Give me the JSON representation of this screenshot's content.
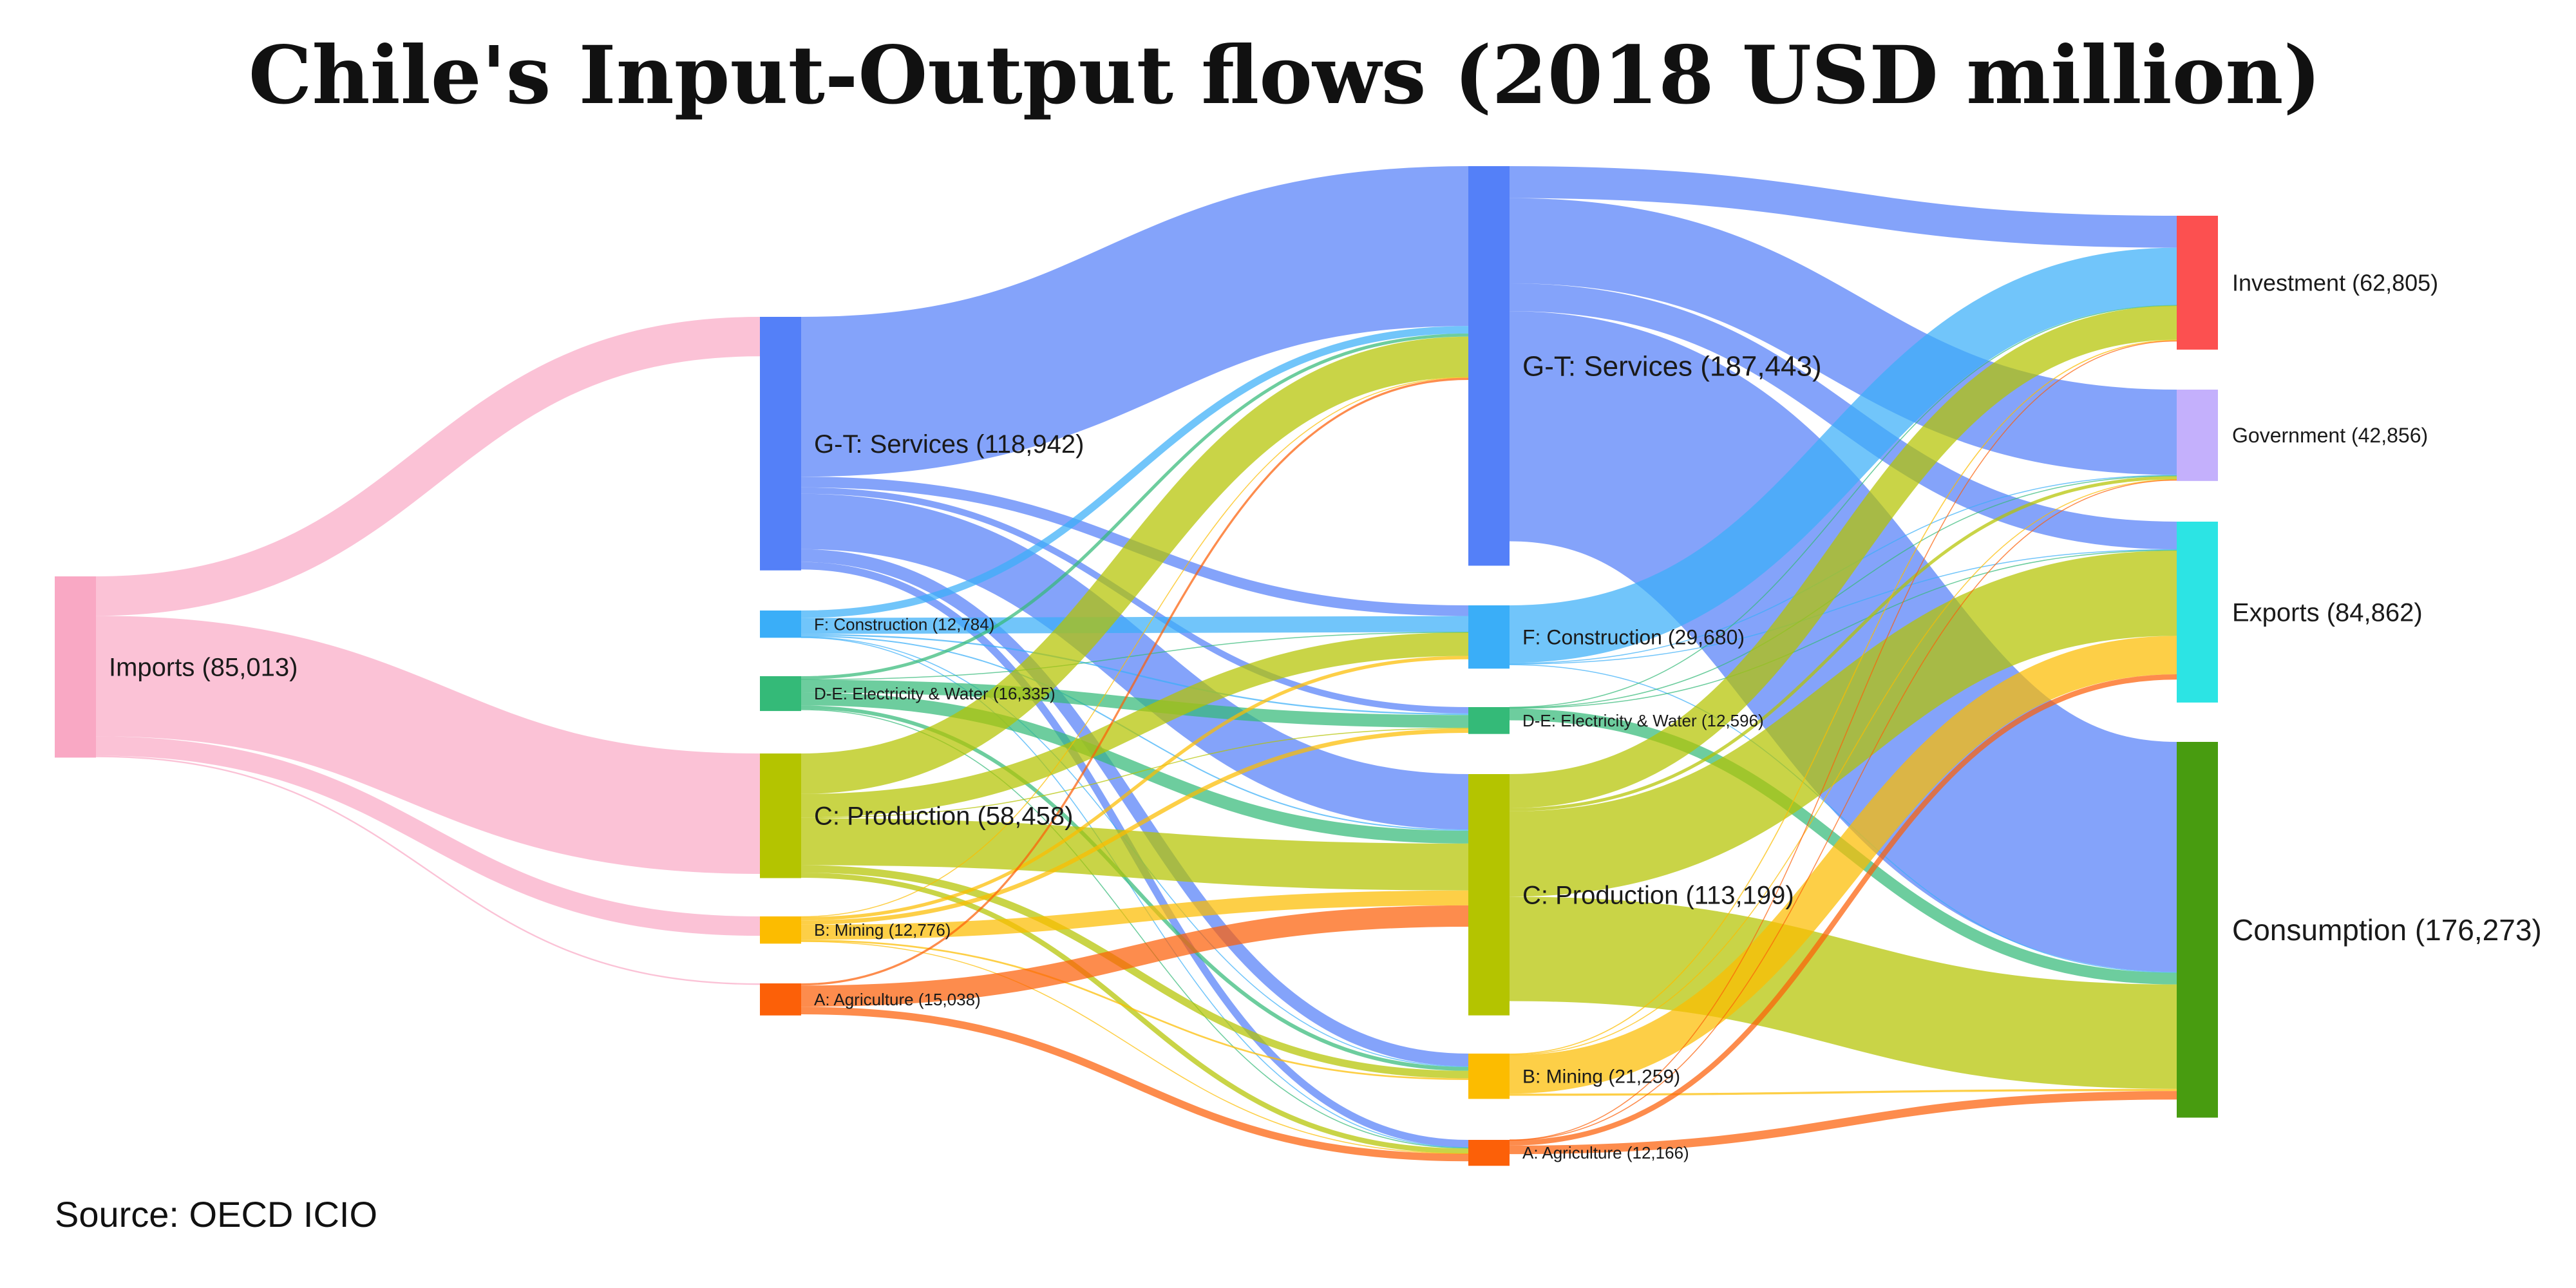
{
  "page": {
    "title": "Chile's Input-Output flows (2018 USD million)",
    "source": "Source: OECD ICIO"
  },
  "chart_data": {
    "type": "sankey",
    "nodes": [
      {
        "id": "imports",
        "label": "Imports (85,013)",
        "value": 85013,
        "color": "#F9A8C4"
      },
      {
        "id": "s_gt",
        "label": "G-T: Services (118,942)",
        "value": 118942,
        "color": "#5480F8"
      },
      {
        "id": "s_f",
        "label": "F: Construction (12,784)",
        "value": 12784,
        "color": "#3AAEF8"
      },
      {
        "id": "s_de",
        "label": "D-E: Electricity & Water (16,335)",
        "value": 16335,
        "color": "#34BA78"
      },
      {
        "id": "s_c",
        "label": "C: Production (58,458)",
        "value": 58458,
        "color": "#B4C400"
      },
      {
        "id": "s_b",
        "label": "B: Mining (12,776)",
        "value": 12776,
        "color": "#FCBC00"
      },
      {
        "id": "s_a",
        "label": "A: Agriculture (15,038)",
        "value": 15038,
        "color": "#FC6008"
      },
      {
        "id": "t_gt",
        "label": "G-T: Services (187,443)",
        "value": 187443,
        "color": "#5480F8"
      },
      {
        "id": "t_f",
        "label": "F: Construction (29,680)",
        "value": 29680,
        "color": "#3AAEF8"
      },
      {
        "id": "t_de",
        "label": "D-E: Electricity & Water (12,596)",
        "value": 12596,
        "color": "#34BA78"
      },
      {
        "id": "t_c",
        "label": "C: Production (113,199)",
        "value": 113199,
        "color": "#B4C400"
      },
      {
        "id": "t_b",
        "label": "B: Mining (21,259)",
        "value": 21259,
        "color": "#FCBC00"
      },
      {
        "id": "t_a",
        "label": "A: Agriculture (12,166)",
        "value": 12166,
        "color": "#FC6008"
      },
      {
        "id": "inv",
        "label": "Investment (62,805)",
        "value": 62805,
        "color": "#FC5050"
      },
      {
        "id": "gov",
        "label": "Government (42,856)",
        "value": 42856,
        "color": "#C4B0FC"
      },
      {
        "id": "exp",
        "label": "Exports (84,862)",
        "value": 84862,
        "color": "#2CE4E4"
      },
      {
        "id": "con",
        "label": "Consumption (176,273)",
        "value": 176273,
        "color": "#489C10"
      }
    ],
    "links": [
      {
        "source": "imports",
        "target": "s_gt",
        "value": 18500
      },
      {
        "source": "imports",
        "target": "s_c",
        "value": 56500
      },
      {
        "source": "imports",
        "target": "s_b",
        "value": 9100
      },
      {
        "source": "imports",
        "target": "s_a",
        "value": 700
      },
      {
        "source": "s_gt",
        "target": "t_gt",
        "value": 75000
      },
      {
        "source": "s_gt",
        "target": "t_f",
        "value": 5000
      },
      {
        "source": "s_gt",
        "target": "t_de",
        "value": 3000
      },
      {
        "source": "s_gt",
        "target": "t_c",
        "value": 26000
      },
      {
        "source": "s_gt",
        "target": "t_b",
        "value": 6000
      },
      {
        "source": "s_gt",
        "target": "t_a",
        "value": 3500
      },
      {
        "source": "s_f",
        "target": "t_gt",
        "value": 3500
      },
      {
        "source": "s_f",
        "target": "t_f",
        "value": 7500
      },
      {
        "source": "s_f",
        "target": "t_de",
        "value": 700
      },
      {
        "source": "s_f",
        "target": "t_c",
        "value": 600
      },
      {
        "source": "s_f",
        "target": "t_b",
        "value": 300
      },
      {
        "source": "s_f",
        "target": "t_a",
        "value": 150
      },
      {
        "source": "s_de",
        "target": "t_gt",
        "value": 1500
      },
      {
        "source": "s_de",
        "target": "t_f",
        "value": 200
      },
      {
        "source": "s_de",
        "target": "t_de",
        "value": 6000
      },
      {
        "source": "s_de",
        "target": "t_c",
        "value": 6000
      },
      {
        "source": "s_de",
        "target": "t_b",
        "value": 1800
      },
      {
        "source": "s_de",
        "target": "t_a",
        "value": 400
      },
      {
        "source": "s_c",
        "target": "t_gt",
        "value": 19000
      },
      {
        "source": "s_c",
        "target": "t_f",
        "value": 11000
      },
      {
        "source": "s_c",
        "target": "t_de",
        "value": 400
      },
      {
        "source": "s_c",
        "target": "t_c",
        "value": 22000
      },
      {
        "source": "s_c",
        "target": "t_b",
        "value": 3500
      },
      {
        "source": "s_c",
        "target": "t_a",
        "value": 2400
      },
      {
        "source": "s_b",
        "target": "t_gt",
        "value": 300
      },
      {
        "source": "s_b",
        "target": "t_f",
        "value": 1600
      },
      {
        "source": "s_b",
        "target": "t_de",
        "value": 2000
      },
      {
        "source": "s_b",
        "target": "t_c",
        "value": 7000
      },
      {
        "source": "s_b",
        "target": "t_b",
        "value": 800
      },
      {
        "source": "s_b",
        "target": "t_a",
        "value": 100
      },
      {
        "source": "s_a",
        "target": "t_gt",
        "value": 1000
      },
      {
        "source": "s_a",
        "target": "t_c",
        "value": 10000
      },
      {
        "source": "s_a",
        "target": "t_a",
        "value": 3500
      },
      {
        "source": "t_gt",
        "target": "inv",
        "value": 15000
      },
      {
        "source": "t_gt",
        "target": "gov",
        "value": 40000
      },
      {
        "source": "t_gt",
        "target": "exp",
        "value": 13000
      },
      {
        "source": "t_gt",
        "target": "con",
        "value": 108000
      },
      {
        "source": "t_f",
        "target": "inv",
        "value": 27000
      },
      {
        "source": "t_f",
        "target": "gov",
        "value": 400
      },
      {
        "source": "t_f",
        "target": "exp",
        "value": 300
      },
      {
        "source": "t_f",
        "target": "con",
        "value": 300
      },
      {
        "source": "t_de",
        "target": "inv",
        "value": 200
      },
      {
        "source": "t_de",
        "target": "gov",
        "value": 200
      },
      {
        "source": "t_de",
        "target": "exp",
        "value": 300
      },
      {
        "source": "t_de",
        "target": "con",
        "value": 5500
      },
      {
        "source": "t_c",
        "target": "inv",
        "value": 16000
      },
      {
        "source": "t_c",
        "target": "gov",
        "value": 1500
      },
      {
        "source": "t_c",
        "target": "exp",
        "value": 40000
      },
      {
        "source": "t_c",
        "target": "con",
        "value": 49000
      },
      {
        "source": "t_b",
        "target": "inv",
        "value": 500
      },
      {
        "source": "t_b",
        "target": "gov",
        "value": 300
      },
      {
        "source": "t_b",
        "target": "exp",
        "value": 18000
      },
      {
        "source": "t_b",
        "target": "con",
        "value": 1000
      },
      {
        "source": "t_a",
        "target": "inv",
        "value": 100
      },
      {
        "source": "t_a",
        "target": "gov",
        "value": 100
      },
      {
        "source": "t_a",
        "target": "exp",
        "value": 2500
      },
      {
        "source": "t_a",
        "target": "con",
        "value": 4000
      }
    ]
  }
}
